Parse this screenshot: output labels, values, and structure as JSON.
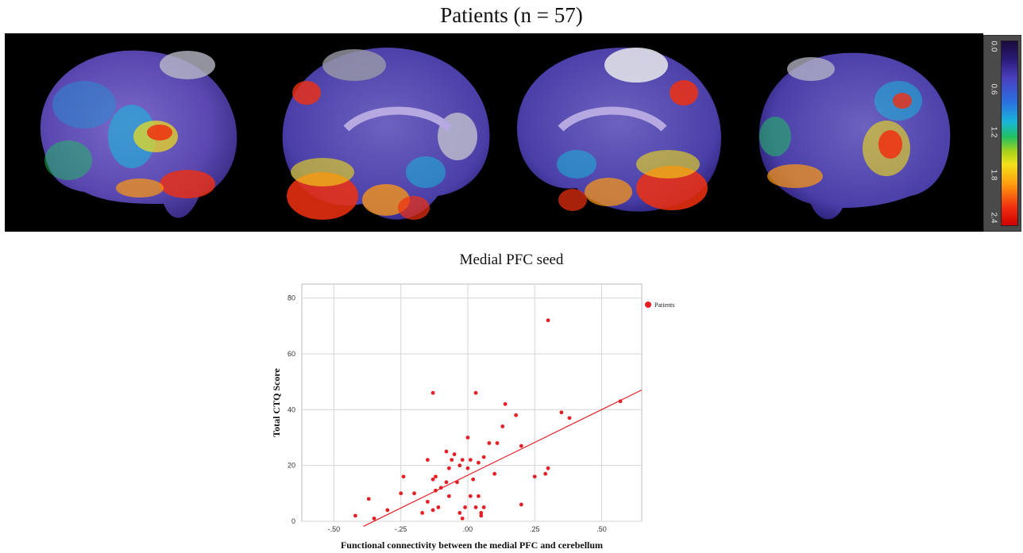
{
  "figure": {
    "title": "Patients (n = 57)",
    "colorbar_ticks": [
      "0.0",
      "0.6",
      "1.2",
      "1.8",
      "2.4"
    ],
    "panel_background": "#000000"
  },
  "chart_data": {
    "type": "scatter",
    "title": "Medial  PFC seed",
    "xlabel": "Functional connectivity between the medial PFC and cerebellum",
    "ylabel": "Total CTQ Score",
    "xlim": [
      -0.62,
      0.65
    ],
    "ylim": [
      0,
      85
    ],
    "x_ticks": [
      -0.5,
      -0.25,
      0.0,
      0.25,
      0.5
    ],
    "x_tick_labels": [
      "-.50",
      "-.25",
      ".00",
      ".25",
      ".50"
    ],
    "y_ticks": [
      0,
      20,
      40,
      60,
      80
    ],
    "y_tick_labels": [
      "0",
      "20",
      "40",
      "60",
      "80"
    ],
    "grid": true,
    "legend": "top-right",
    "series": [
      {
        "name": "Patients",
        "color": "#e41f26",
        "points": [
          [
            0.3,
            72
          ],
          [
            -0.13,
            46
          ],
          [
            0.03,
            46
          ],
          [
            0.57,
            43
          ],
          [
            0.14,
            42
          ],
          [
            0.35,
            39
          ],
          [
            0.38,
            37
          ],
          [
            0.18,
            38
          ],
          [
            0.13,
            34
          ],
          [
            0.0,
            30
          ],
          [
            0.08,
            28
          ],
          [
            0.11,
            28
          ],
          [
            0.2,
            27
          ],
          [
            -0.08,
            25
          ],
          [
            -0.05,
            24
          ],
          [
            -0.06,
            22
          ],
          [
            -0.02,
            22
          ],
          [
            0.01,
            22
          ],
          [
            -0.15,
            22
          ],
          [
            0.04,
            21
          ],
          [
            0.06,
            23
          ],
          [
            -0.03,
            20
          ],
          [
            -0.07,
            19
          ],
          [
            0.0,
            19
          ],
          [
            -0.24,
            16
          ],
          [
            -0.12,
            16
          ],
          [
            -0.13,
            15
          ],
          [
            -0.08,
            14
          ],
          [
            0.1,
            17
          ],
          [
            0.25,
            16
          ],
          [
            0.29,
            17
          ],
          [
            0.3,
            19
          ],
          [
            -0.04,
            14
          ],
          [
            0.02,
            15
          ],
          [
            -0.1,
            12
          ],
          [
            -0.12,
            11
          ],
          [
            -0.2,
            10
          ],
          [
            -0.25,
            10
          ],
          [
            -0.07,
            9
          ],
          [
            0.01,
            9
          ],
          [
            0.04,
            9
          ],
          [
            -0.15,
            7
          ],
          [
            -0.11,
            5
          ],
          [
            -0.01,
            5
          ],
          [
            0.03,
            5
          ],
          [
            0.06,
            5
          ],
          [
            -0.37,
            8
          ],
          [
            -0.3,
            4
          ],
          [
            -0.13,
            4
          ],
          [
            -0.03,
            3
          ],
          [
            0.05,
            3
          ],
          [
            0.2,
            6
          ],
          [
            -0.17,
            3
          ],
          [
            -0.42,
            2
          ],
          [
            -0.35,
            1
          ],
          [
            -0.02,
            1
          ],
          [
            0.05,
            2
          ]
        ]
      }
    ],
    "fit_line": {
      "slope": 47,
      "intercept": 16.5,
      "x_range": [
        -0.39,
        0.65
      ]
    }
  }
}
